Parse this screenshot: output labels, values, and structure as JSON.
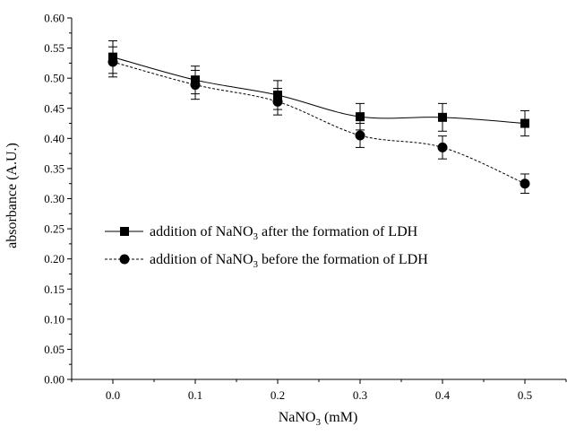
{
  "chart_data": {
    "type": "line",
    "title": "",
    "xlabel": "NaNO",
    "xlabel_subscript": "3",
    "xlabel_suffix": " (mM)",
    "ylabel": "absorbance (A.U.)",
    "xlim": [
      -0.05,
      0.55
    ],
    "ylim": [
      0.0,
      0.6
    ],
    "x_ticks": [
      "0.0",
      "0.1",
      "0.2",
      "0.3",
      "0.4",
      "0.5"
    ],
    "y_ticks": [
      "0.00",
      "0.05",
      "0.10",
      "0.15",
      "0.20",
      "0.25",
      "0.30",
      "0.35",
      "0.40",
      "0.45",
      "0.50",
      "0.55",
      "0.60"
    ],
    "grid": false,
    "legend_position": "center-left",
    "x": [
      0.0,
      0.1,
      0.2,
      0.3,
      0.4,
      0.5
    ],
    "series": [
      {
        "legend_parts": [
          "addition of NaNO",
          "3",
          " after the formation of LDH"
        ],
        "marker": "square",
        "line_style": "solid",
        "values": [
          0.535,
          0.497,
          0.472,
          0.436,
          0.435,
          0.425
        ],
        "errors": [
          0.027,
          0.023,
          0.024,
          0.022,
          0.023,
          0.021
        ]
      },
      {
        "legend_parts": [
          "addition of NaNO",
          "3",
          " before the formation of LDH"
        ],
        "marker": "circle",
        "line_style": "dashed",
        "values": [
          0.527,
          0.489,
          0.461,
          0.405,
          0.385,
          0.325
        ],
        "errors": [
          0.025,
          0.024,
          0.022,
          0.02,
          0.019,
          0.016
        ]
      }
    ]
  }
}
